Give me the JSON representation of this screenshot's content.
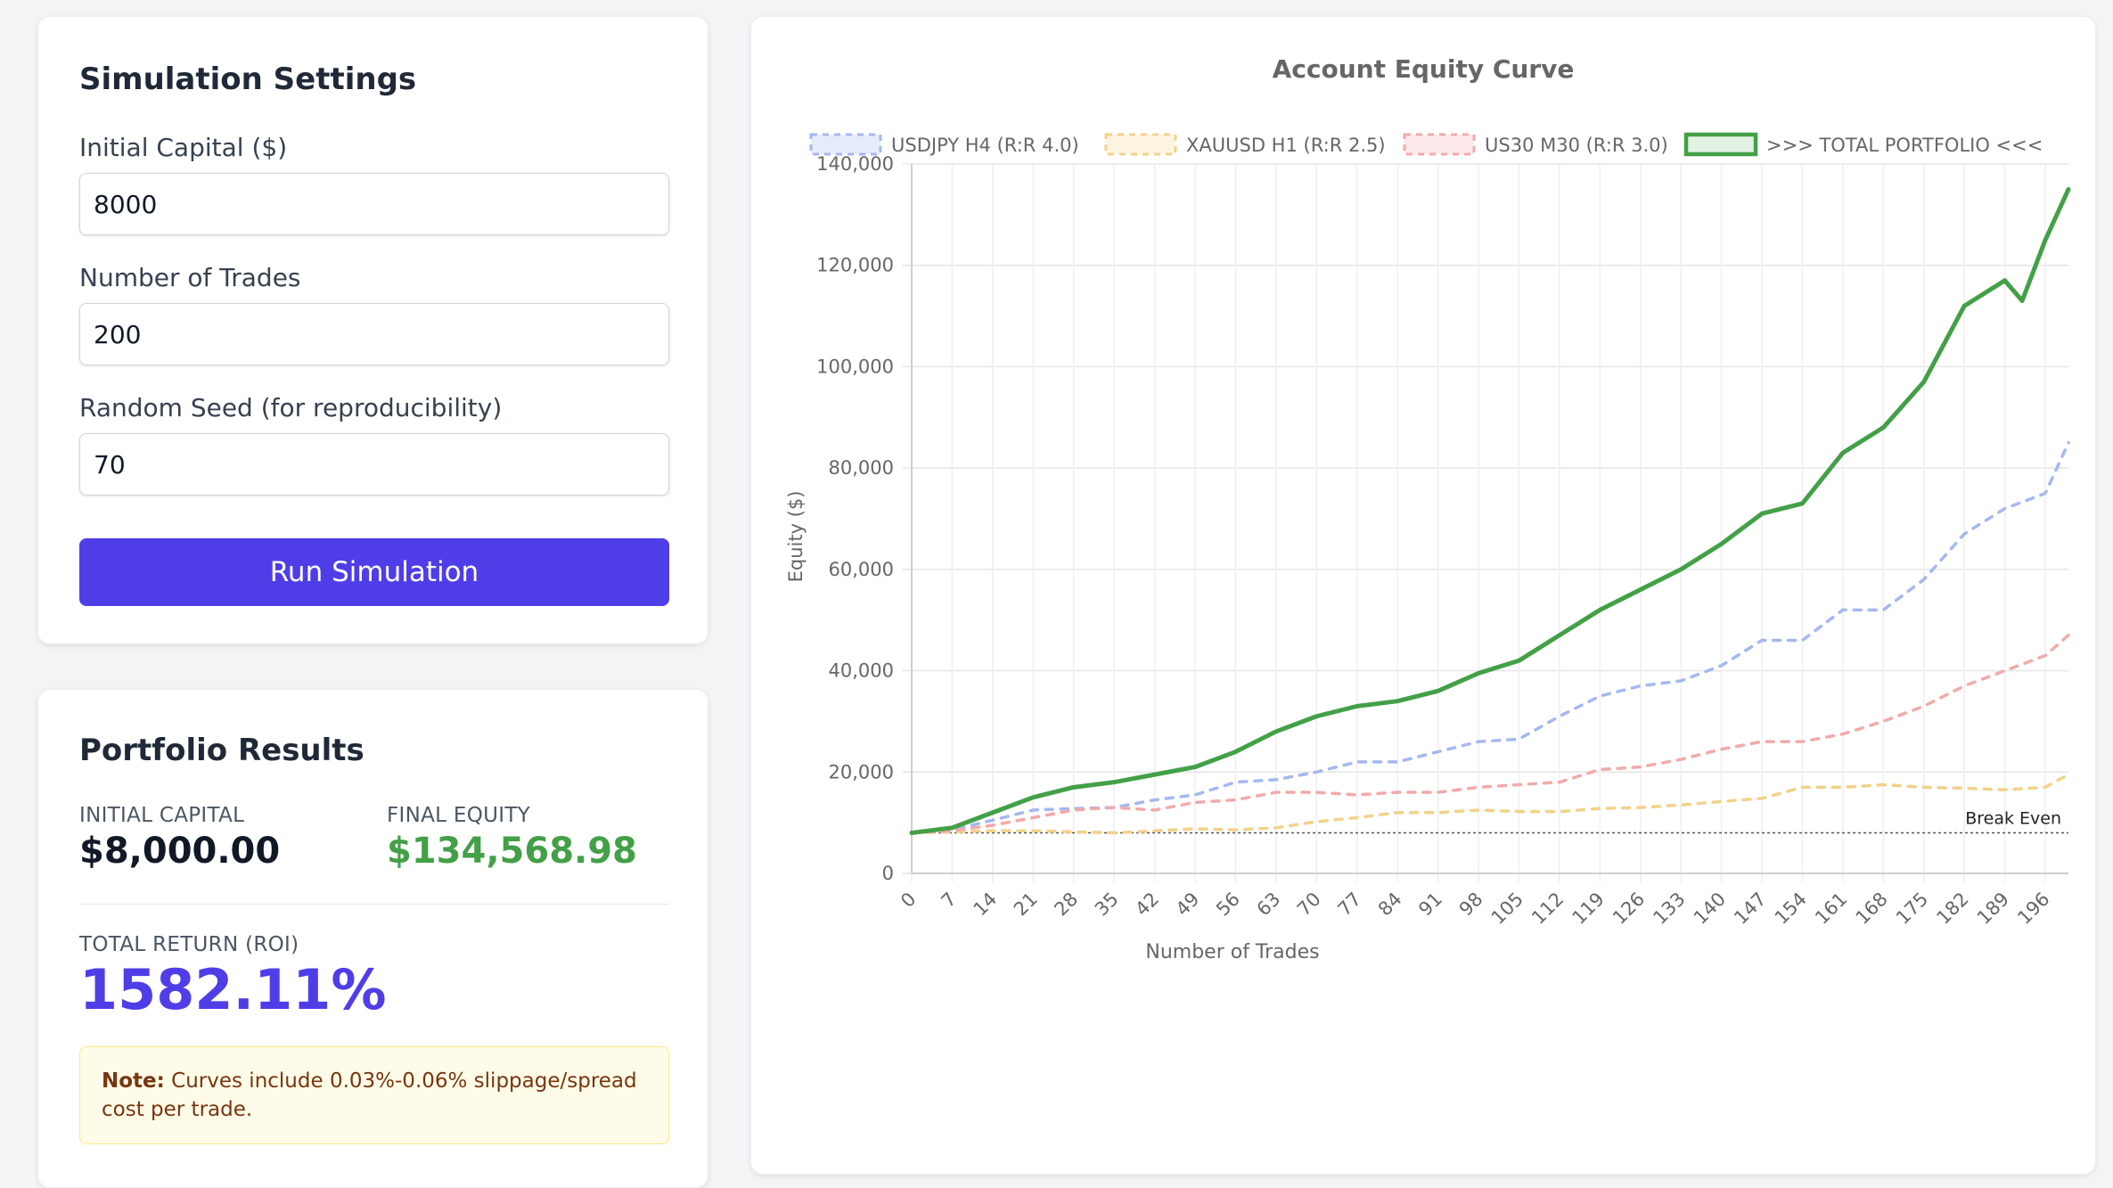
{
  "settings": {
    "title": "Simulation Settings",
    "capital_label": "Initial Capital ($)",
    "capital_value": "8000",
    "trades_label": "Number of Trades",
    "trades_value": "200",
    "seed_label": "Random Seed (for reproducibility)",
    "seed_value": "70",
    "run_label": "Run Simulation",
    "accent_color": "#4f3ee8"
  },
  "results": {
    "title": "Portfolio Results",
    "initial_label": "INITIAL CAPITAL",
    "initial_value": "$8,000.00",
    "final_label": "FINAL EQUITY",
    "final_value": "$134,568.98",
    "roi_label": "TOTAL RETURN (ROI)",
    "roi_value": "1582.11%",
    "note_bold": "Note:",
    "note_text": "Curves include 0.03%-0.06% slippage/spread cost per trade.",
    "positive_color": "#43a047",
    "roi_color": "#4f3ee8"
  },
  "chart_data": {
    "type": "line",
    "title": "Account Equity Curve",
    "xlabel": "Number of Trades",
    "ylabel": "Equity ($)",
    "xlim": [
      0,
      200
    ],
    "ylim": [
      0,
      140000
    ],
    "x_ticks": [
      0,
      7,
      14,
      21,
      28,
      35,
      42,
      49,
      56,
      63,
      70,
      77,
      84,
      91,
      98,
      105,
      112,
      119,
      126,
      133,
      140,
      147,
      154,
      161,
      168,
      175,
      182,
      189,
      196
    ],
    "y_ticks": [
      0,
      20000,
      40000,
      60000,
      80000,
      100000,
      120000,
      140000
    ],
    "y_tick_labels": [
      "0",
      "20,000",
      "40,000",
      "60,000",
      "80,000",
      "100,000",
      "120,000",
      "140,000"
    ],
    "grid": true,
    "legend_position": "top",
    "break_even": {
      "label": "Break Even",
      "value": 8000
    },
    "series": [
      {
        "name": "USDJPY H4 (R:R 4.0)",
        "color": "#a5b8f0",
        "style": "dashed",
        "x": [
          0,
          7,
          14,
          21,
          28,
          35,
          42,
          49,
          56,
          63,
          70,
          77,
          84,
          91,
          98,
          105,
          112,
          119,
          126,
          133,
          140,
          147,
          154,
          161,
          168,
          175,
          182,
          189,
          196,
          200
        ],
        "values": [
          8000,
          8600,
          10500,
          12500,
          12800,
          13000,
          14500,
          15500,
          18000,
          18500,
          20000,
          22000,
          22000,
          24000,
          26000,
          26500,
          31000,
          35000,
          37000,
          38000,
          41000,
          46000,
          46000,
          52000,
          52000,
          58000,
          67000,
          72000,
          75000,
          85000
        ]
      },
      {
        "name": "XAUUSD H1 (R:R 2.5)",
        "color": "#f2d28a",
        "style": "dashed",
        "x": [
          0,
          7,
          14,
          21,
          28,
          35,
          42,
          49,
          56,
          63,
          70,
          77,
          84,
          91,
          98,
          105,
          112,
          119,
          126,
          133,
          140,
          147,
          154,
          161,
          168,
          175,
          182,
          189,
          196,
          200
        ],
        "values": [
          8000,
          8200,
          8400,
          8400,
          8200,
          8000,
          8400,
          8800,
          8600,
          9000,
          10200,
          11000,
          12000,
          12000,
          12500,
          12200,
          12200,
          12800,
          13000,
          13500,
          14200,
          14800,
          17000,
          17000,
          17500,
          17000,
          16800,
          16500,
          17000,
          19500
        ]
      },
      {
        "name": "US30 M30 (R:R 3.0)",
        "color": "#f2aaaa",
        "style": "dashed",
        "x": [
          0,
          7,
          14,
          21,
          28,
          35,
          42,
          49,
          56,
          63,
          70,
          77,
          84,
          91,
          98,
          105,
          112,
          119,
          126,
          133,
          140,
          147,
          154,
          161,
          168,
          175,
          182,
          189,
          196,
          200
        ],
        "values": [
          8000,
          8400,
          9500,
          11000,
          12500,
          13000,
          12500,
          14000,
          14500,
          16000,
          16000,
          15500,
          16000,
          16000,
          17000,
          17500,
          18000,
          20500,
          21000,
          22500,
          24500,
          26000,
          26000,
          27500,
          30000,
          33000,
          37000,
          40000,
          43000,
          47000
        ]
      },
      {
        "name": ">>> TOTAL PORTFOLIO <<<",
        "color": "#43a047",
        "style": "solid",
        "x": [
          0,
          7,
          14,
          21,
          28,
          35,
          42,
          49,
          56,
          63,
          70,
          77,
          84,
          91,
          98,
          105,
          112,
          119,
          126,
          133,
          140,
          147,
          154,
          161,
          168,
          175,
          182,
          189,
          192,
          196,
          200
        ],
        "values": [
          8000,
          9000,
          12000,
          15000,
          17000,
          18000,
          19500,
          21000,
          24000,
          28000,
          31000,
          33000,
          34000,
          36000,
          39500,
          42000,
          47000,
          52000,
          56000,
          60000,
          65000,
          71000,
          73000,
          83000,
          88000,
          97000,
          112000,
          117000,
          113000,
          125000,
          135000
        ]
      }
    ]
  }
}
